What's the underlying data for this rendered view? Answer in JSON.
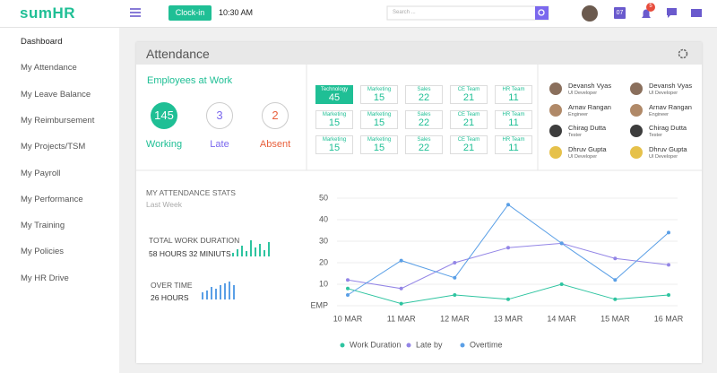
{
  "header": {
    "logo": "sumHR",
    "clock_in": "Clock-in",
    "time": "10:30 AM",
    "search_placeholder": "Search ...",
    "calendar_day": "07",
    "notifications": "5"
  },
  "sidebar": [
    "Dashboard",
    "My Attendance",
    "My Leave Balance",
    "My Reimbursement",
    "My Projects/TSM",
    "My Payroll",
    "My Performance",
    "My Training",
    "My Policies",
    "My HR Drive"
  ],
  "card": {
    "title": "Attendance"
  },
  "employees": {
    "title": "Employees at Work",
    "stats": [
      {
        "value": "145",
        "label": "Working"
      },
      {
        "value": "3",
        "label": "Late"
      },
      {
        "value": "2",
        "label": "Absent"
      }
    ]
  },
  "teams": [
    [
      {
        "name": "Technology",
        "count": "45"
      },
      {
        "name": "Marketing",
        "count": "15"
      },
      {
        "name": "Sales",
        "count": "22"
      },
      {
        "name": "CE Team",
        "count": "21"
      },
      {
        "name": "HR Team",
        "count": "11"
      }
    ],
    [
      {
        "name": "Marketing",
        "count": "15"
      },
      {
        "name": "Marketing",
        "count": "15"
      },
      {
        "name": "Sales",
        "count": "22"
      },
      {
        "name": "CE Team",
        "count": "21"
      },
      {
        "name": "HR Team",
        "count": "11"
      }
    ],
    [
      {
        "name": "Marketing",
        "count": "15"
      },
      {
        "name": "Marketing",
        "count": "15"
      },
      {
        "name": "Sales",
        "count": "22"
      },
      {
        "name": "CE Team",
        "count": "21"
      },
      {
        "name": "HR Team",
        "count": "11"
      }
    ]
  ],
  "people": [
    [
      {
        "name": "Devansh Vyas",
        "role": "UI Developer"
      },
      {
        "name": "Devansh Vyas",
        "role": "UI Developer"
      }
    ],
    [
      {
        "name": "Arnav Rangan",
        "role": "Engineer"
      },
      {
        "name": "Arnav Rangan",
        "role": "Engineer"
      }
    ],
    [
      {
        "name": "Chirag Dutta",
        "role": "Tester"
      },
      {
        "name": "Chirag Dutta",
        "role": "Tester"
      }
    ],
    [
      {
        "name": "Dhruv Gupta",
        "role": "UI Developer"
      },
      {
        "name": "Dhruv Gupta",
        "role": "UI Developer"
      }
    ]
  ],
  "stats": {
    "title": "MY ATTENDANCE STATS",
    "period": "Last Week",
    "total_label": "TOTAL WORK DURATION",
    "total_value": "58 HOURS 32 MINIUTS",
    "overtime_label": "OVER TIME",
    "overtime_value": "26 HOURS"
  },
  "chart_data": {
    "type": "line",
    "categories": [
      "10 MAR",
      "11 MAR",
      "12 MAR",
      "13 MAR",
      "14 MAR",
      "15 MAR",
      "16 MAR"
    ],
    "series": [
      {
        "name": "Work Duration",
        "color": "#2ec4a0",
        "values": [
          8,
          1,
          5,
          3,
          10,
          3,
          5
        ]
      },
      {
        "name": "Late by",
        "color": "#9385e6",
        "values": [
          12,
          8,
          20,
          27,
          29,
          22,
          19
        ]
      },
      {
        "name": "Overtime",
        "color": "#5a9fe6",
        "values": [
          5,
          21,
          13,
          47,
          29,
          12,
          34
        ]
      }
    ],
    "ylim": [
      0,
      50
    ],
    "yticks": [
      {
        "value": 0,
        "label": "EMP"
      },
      10,
      20,
      30,
      40,
      50
    ],
    "grid": true
  }
}
